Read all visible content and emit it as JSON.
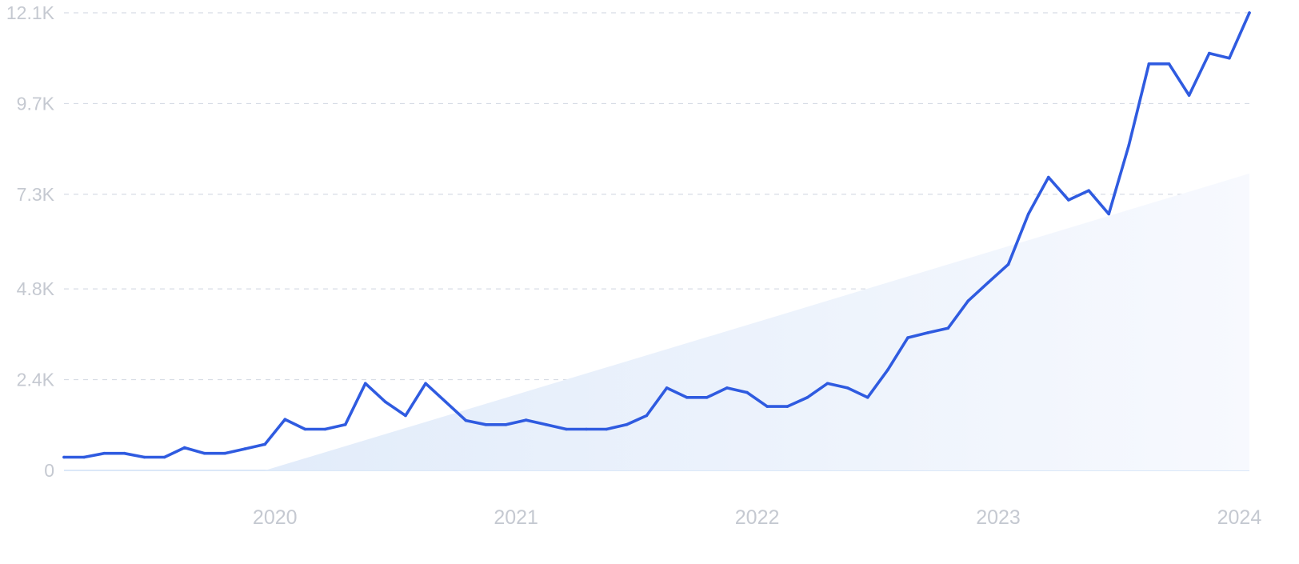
{
  "chart_data": {
    "type": "line",
    "y_tick_labels": [
      "12.1K",
      "9.7K",
      "7.3K",
      "4.8K",
      "2.4K",
      "0"
    ],
    "y_tick_values": [
      12100,
      9700,
      7300,
      4800,
      2400,
      0
    ],
    "x_tick_labels": [
      "2020",
      "2021",
      "2022",
      "2023",
      "2024"
    ],
    "ylim": [
      0,
      12100
    ],
    "xlim": [
      "2019-08",
      "2024-07"
    ],
    "grid": true,
    "x": [
      "2019-08",
      "2019-09",
      "2019-10",
      "2019-11",
      "2019-12",
      "2020-01",
      "2020-02",
      "2020-03",
      "2020-04",
      "2020-05",
      "2020-06",
      "2020-07",
      "2020-08",
      "2020-09",
      "2020-10",
      "2020-11",
      "2020-12",
      "2021-01",
      "2021-02",
      "2021-03",
      "2021-04",
      "2021-05",
      "2021-06",
      "2021-07",
      "2021-08",
      "2021-09",
      "2021-10",
      "2021-11",
      "2021-12",
      "2022-01",
      "2022-02",
      "2022-03",
      "2022-04",
      "2022-05",
      "2022-06",
      "2022-07",
      "2022-08",
      "2022-09",
      "2022-10",
      "2022-11",
      "2022-12",
      "2023-01",
      "2023-02",
      "2023-03",
      "2023-04",
      "2023-05",
      "2023-06",
      "2023-07",
      "2023-08",
      "2023-09",
      "2023-10",
      "2023-11",
      "2023-12",
      "2024-01",
      "2024-02",
      "2024-03",
      "2024-04",
      "2024-05",
      "2024-06",
      "2024-07"
    ],
    "series": [
      {
        "color": "#2f5be0",
        "values": [
          350,
          350,
          450,
          450,
          350,
          350,
          600,
          450,
          450,
          570,
          690,
          1350,
          1090,
          1090,
          1210,
          2300,
          1810,
          1450,
          2300,
          1810,
          1320,
          1210,
          1210,
          1330,
          1210,
          1090,
          1090,
          1090,
          1210,
          1450,
          2180,
          1930,
          1930,
          2180,
          2060,
          1690,
          1690,
          1930,
          2300,
          2180,
          1930,
          2660,
          3510,
          3640,
          3760,
          4480,
          4970,
          5450,
          6780,
          7750,
          7150,
          7400,
          6780,
          8600,
          10750,
          10750,
          9920,
          11030,
          10900,
          12100
        ]
      }
    ],
    "trend": {
      "color": "#e4eefb",
      "start_x": "2020-06",
      "end_x": "2024-07",
      "end_value": 7850
    }
  }
}
